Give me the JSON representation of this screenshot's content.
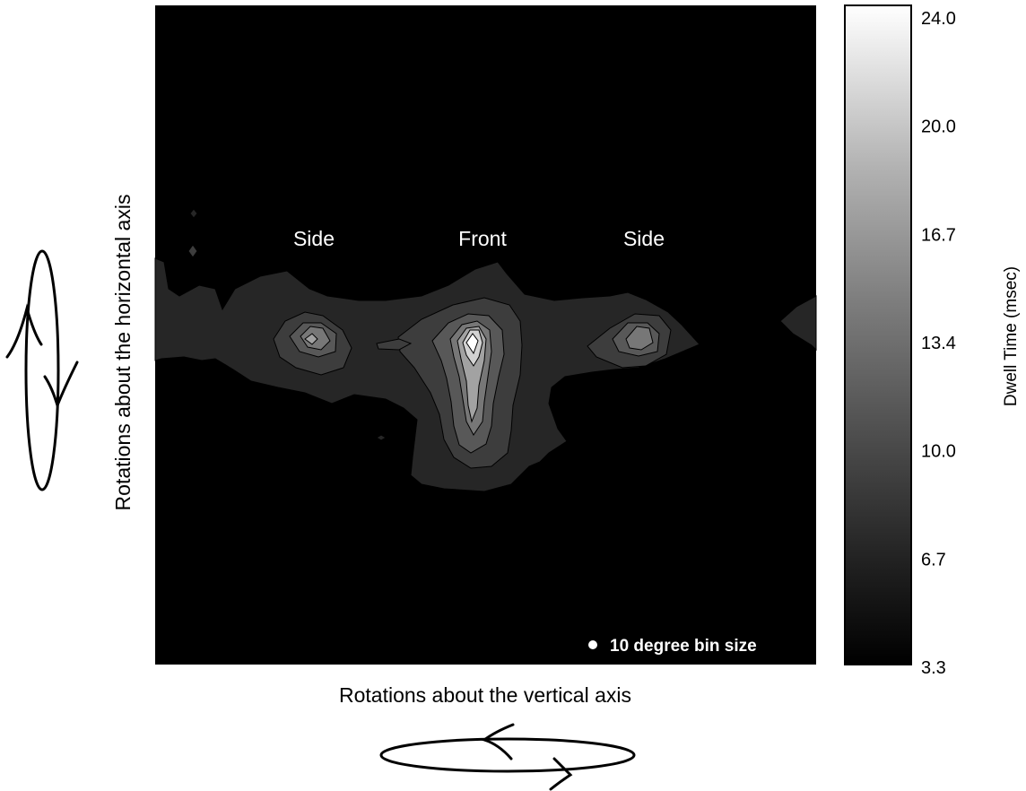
{
  "chart_data": {
    "type": "heatmap",
    "title": "",
    "xlabel": "Rotations about the vertical axis",
    "ylabel": "Rotations about the horizontal axis",
    "colorbar": {
      "label": "Dwell Time (msec)",
      "ticks": [
        "24.0",
        "20.0",
        "16.7",
        "13.4",
        "10.0",
        "6.7",
        "3.3"
      ],
      "tick_values": [
        24.0,
        20.0,
        16.7,
        13.4,
        10.0,
        6.7,
        3.3
      ],
      "range": [
        3.3,
        24.0
      ],
      "colormap": "grayscale (black = low, white = high)"
    },
    "annotations": [
      {
        "text": "Side"
      },
      {
        "text": "Front"
      },
      {
        "text": "Side"
      }
    ],
    "bin_note": "10 degree bin size",
    "peaks": [
      {
        "region": "Side (left)",
        "peak_dwell_msec": 16.0
      },
      {
        "region": "Front",
        "peak_dwell_msec": 24.0
      },
      {
        "region": "Side (right)",
        "peak_dwell_msec": 14.5
      }
    ],
    "grid": false,
    "legend": "colorbar-right"
  },
  "colors": {
    "background": "#000000",
    "contour": "#000000",
    "marker": "#ffffff"
  },
  "icons": {
    "vertical_rotation": "ellipse-rotation-arrows-horizontal-icon",
    "horizontal_rotation": "ellipse-rotation-arrows-vertical-icon"
  }
}
